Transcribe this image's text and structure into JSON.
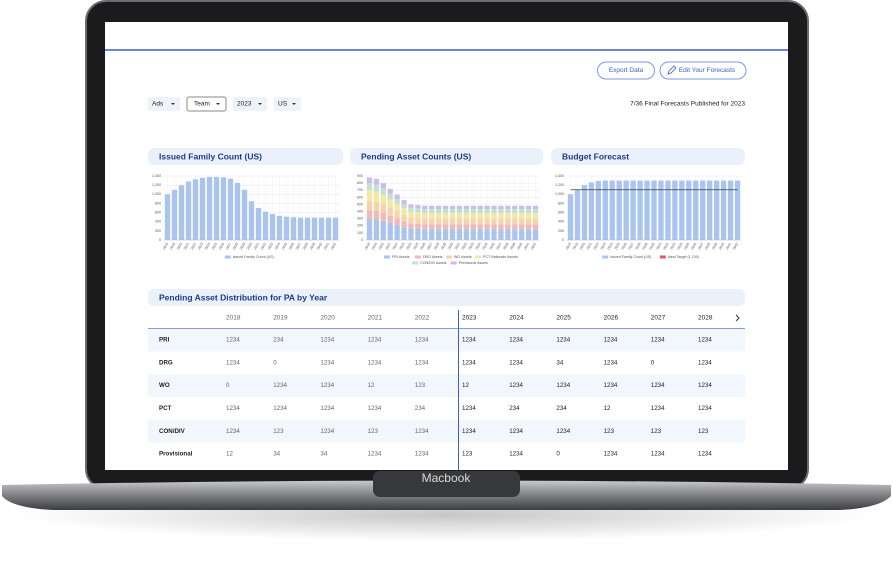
{
  "toolbar": {
    "export_button": "Export Data",
    "edit_button": "Edit Your Forecasts",
    "filters": [
      "Ads",
      "Team",
      "2023",
      "US"
    ],
    "status": "7/36 Final Forecasts Published for 2023"
  },
  "chart_data": [
    {
      "type": "bar",
      "title": "Issued Family Count (US)",
      "categories": [
        "2018",
        "2019",
        "2020",
        "2021",
        "2022",
        "2023",
        "2024",
        "2025",
        "2026",
        "2027",
        "2028",
        "2029",
        "2030",
        "2031",
        "2032",
        "2033",
        "2034",
        "2035",
        "2036",
        "2037",
        "2038",
        "2039",
        "2040",
        "2041",
        "2042"
      ],
      "series": [
        {
          "name": "Issued Family Count (US)",
          "color": "#aac4f0",
          "values": [
            1000,
            1100,
            1200,
            1280,
            1330,
            1360,
            1380,
            1380,
            1370,
            1340,
            1250,
            1100,
            850,
            700,
            620,
            570,
            530,
            510,
            500,
            490,
            490,
            490,
            490,
            490,
            490
          ]
        }
      ],
      "ylim": [
        0,
        1400
      ],
      "yticks": [
        0,
        200,
        400,
        600,
        800,
        {
          "value": 1000,
          "label": "1,000"
        },
        {
          "value": 1200,
          "label": "1,200"
        },
        {
          "value": 1400,
          "label": "1,400"
        }
      ],
      "grid": true
    },
    {
      "type": "bar",
      "stacked": true,
      "title": "Pending Asset Counts (US)",
      "categories": [
        "2018",
        "2019",
        "2020",
        "2021",
        "2022",
        "2023",
        "2024",
        "2025",
        "2026",
        "2027",
        "2028",
        "2029",
        "2030",
        "2031",
        "2032",
        "2033",
        "2034",
        "2035",
        "2036",
        "2037",
        "2038",
        "2039",
        "2040",
        "2041",
        "2042"
      ],
      "series": [
        {
          "name": "PRI Assets",
          "color": "#aac4f0",
          "values": [
            300,
            290,
            270,
            240,
            210,
            180,
            160,
            155,
            150,
            150,
            150,
            150,
            150,
            150,
            150,
            150,
            150,
            150,
            150,
            150,
            150,
            150,
            150,
            150,
            150
          ]
        },
        {
          "name": "DRG Assets",
          "color": "#f4b8b8",
          "values": [
            120,
            120,
            110,
            100,
            90,
            80,
            70,
            70,
            70,
            70,
            70,
            70,
            70,
            70,
            70,
            70,
            70,
            70,
            70,
            70,
            70,
            70,
            70,
            70,
            70
          ]
        },
        {
          "name": "WO Assets",
          "color": "#f8d2a8",
          "values": [
            130,
            125,
            120,
            110,
            100,
            90,
            80,
            80,
            80,
            80,
            80,
            80,
            80,
            80,
            80,
            80,
            80,
            80,
            80,
            80,
            80,
            80,
            80,
            80,
            80
          ]
        },
        {
          "name": "PCT Nationals Assets",
          "color": "#f6e6a6",
          "values": [
            150,
            145,
            135,
            120,
            105,
            95,
            90,
            85,
            80,
            80,
            80,
            80,
            80,
            80,
            80,
            80,
            80,
            80,
            80,
            80,
            80,
            80,
            80,
            80,
            80
          ]
        },
        {
          "name": "CON/DIV Assets",
          "color": "#bfe3cf",
          "values": [
            100,
            100,
            90,
            80,
            70,
            60,
            55,
            55,
            55,
            55,
            55,
            55,
            55,
            55,
            55,
            55,
            55,
            55,
            55,
            55,
            55,
            55,
            55,
            55,
            55
          ]
        },
        {
          "name": "Provisional Assets",
          "color": "#cbbcec",
          "values": [
            80,
            80,
            75,
            70,
            65,
            55,
            45,
            45,
            45,
            45,
            45,
            45,
            45,
            45,
            45,
            45,
            45,
            45,
            45,
            45,
            45,
            45,
            45,
            45,
            45
          ]
        }
      ],
      "ylim": [
        0,
        900
      ],
      "yticks": [
        0,
        100,
        200,
        300,
        400,
        500,
        600,
        700,
        800,
        900
      ],
      "grid": true
    },
    {
      "type": "bar",
      "title": "Budget Forecast",
      "categories": [
        "2018",
        "2019",
        "2020",
        "2021",
        "2022",
        "2023",
        "2024",
        "2025",
        "2026",
        "2027",
        "2028",
        "2029",
        "2030",
        "2031",
        "2032",
        "2033",
        "2034",
        "2035",
        "2036",
        "2037",
        "2038",
        "2039",
        "2040",
        "2041",
        "2042"
      ],
      "series": [
        {
          "name": "Issued Family Count (US)",
          "color": "#aac4f0",
          "values": [
            1000,
            1100,
            1200,
            1260,
            1290,
            1300,
            1300,
            1300,
            1300,
            1300,
            1300,
            1300,
            1300,
            1300,
            1300,
            1300,
            1300,
            1300,
            1300,
            1300,
            1300,
            1300,
            1300,
            1300,
            1300
          ]
        },
        {
          "name": "Ideal Target (1,100)",
          "color": "#e05a6a",
          "type": "line",
          "values": [
            1100,
            1100,
            1100,
            1100,
            1100,
            1100,
            1100,
            1100,
            1100,
            1100,
            1100,
            1100,
            1100,
            1100,
            1100,
            1100,
            1100,
            1100,
            1100,
            1100,
            1100,
            1100,
            1100,
            1100,
            1100
          ]
        }
      ],
      "ylim": [
        0,
        1400
      ],
      "yticks": [
        0,
        200,
        400,
        600,
        800,
        {
          "value": 1000,
          "label": "1,000"
        },
        {
          "value": 1200,
          "label": "1,200"
        },
        {
          "value": 1400,
          "label": "1,400"
        }
      ],
      "grid": true
    }
  ],
  "table": {
    "title": "Pending Asset Distribution for PA by Year",
    "columns": [
      "2018",
      "2019",
      "2020",
      "2021",
      "2022",
      "2023",
      "2024",
      "2025",
      "2026",
      "2027",
      "2028"
    ],
    "rows": [
      {
        "label": "PRI",
        "values": [
          1234,
          234,
          1234,
          1234,
          1234,
          1234,
          1234,
          1234,
          1234,
          1234,
          1234
        ]
      },
      {
        "label": "DRG",
        "values": [
          1234,
          0,
          1234,
          1234,
          1234,
          1234,
          1234,
          34,
          1234,
          0,
          1234
        ]
      },
      {
        "label": "WO",
        "values": [
          0,
          1234,
          1234,
          12,
          123,
          12,
          1234,
          1234,
          1234,
          1234,
          1234
        ]
      },
      {
        "label": "PCT",
        "values": [
          1234,
          1234,
          1234,
          1234,
          234,
          1234,
          234,
          234,
          12,
          1234,
          1234
        ]
      },
      {
        "label": "CON/DIV",
        "values": [
          1234,
          123,
          1234,
          123,
          1234,
          1234,
          1234,
          1234,
          123,
          123,
          123
        ]
      },
      {
        "label": "Provisional",
        "values": [
          12,
          34,
          34,
          1234,
          1234,
          123,
          1234,
          0,
          1234,
          1234,
          1234
        ]
      }
    ]
  },
  "device_label": "Macbook"
}
